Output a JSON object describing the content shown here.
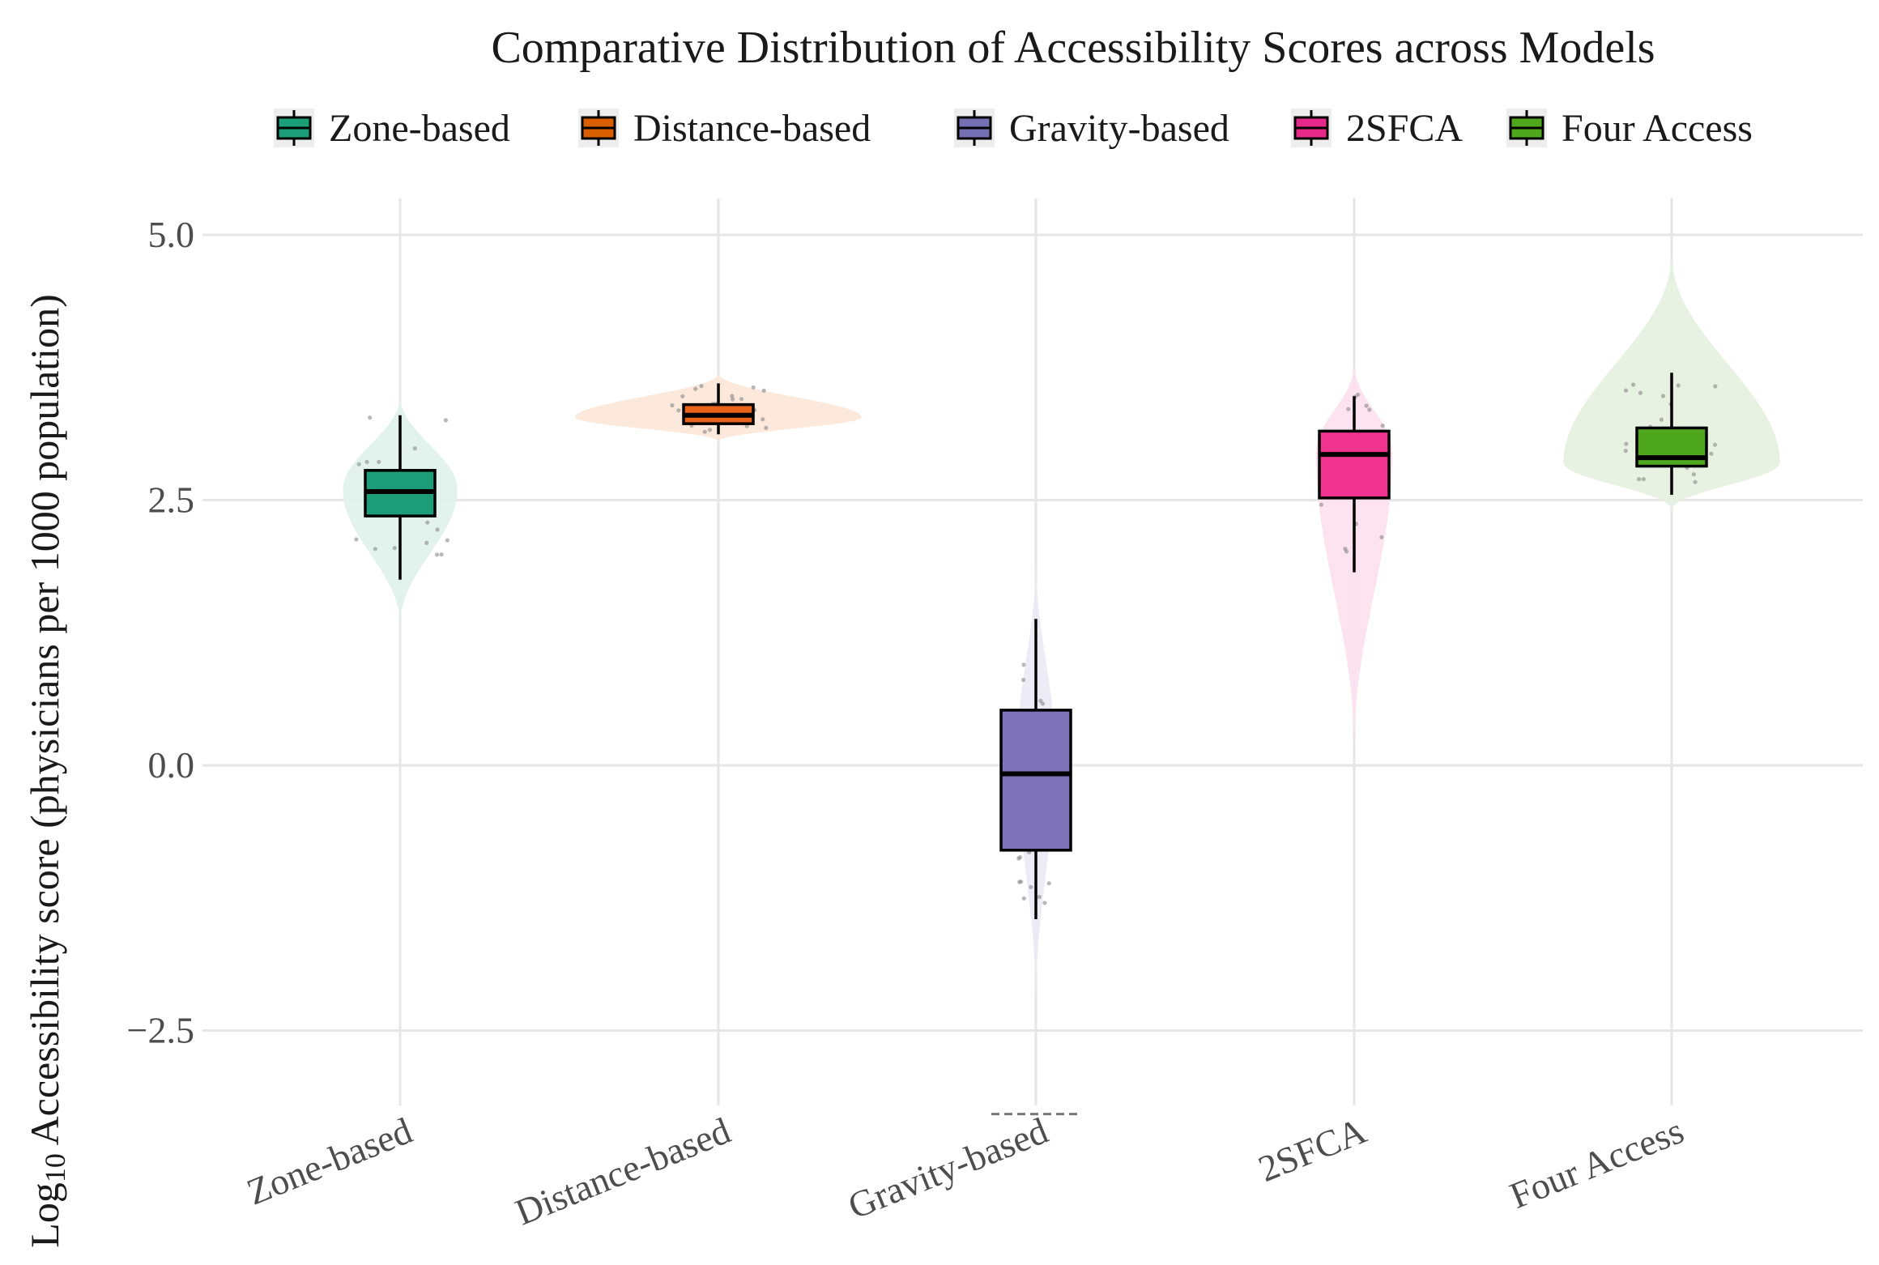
{
  "chart_data": {
    "type": "violin-box",
    "title": "Comparative Distribution of Accessibility Scores across Models",
    "ylabel_prefix": "Log",
    "ylabel_subscript": "10",
    "ylabel_rest": " Accessibility score (physicians per 1000 population)",
    "xlabel": "",
    "ylim": [
      -3.2,
      5.5
    ],
    "yticks": [
      5.0,
      2.5,
      0.0,
      -2.5
    ],
    "ytick_labels": [
      "5.0",
      "2.5",
      "0.0",
      "−2.5"
    ],
    "categories": [
      "Zone-based",
      "Distance-based",
      "Gravity-based",
      "2SFCA",
      "Four Access"
    ],
    "legend": [
      {
        "label": "Zone-based",
        "color": "#1b9e77"
      },
      {
        "label": "Distance-based",
        "color": "#d95f02"
      },
      {
        "label": "Gravity-based",
        "color": "#7570b3"
      },
      {
        "label": "2SFCA",
        "color": "#e7298a"
      },
      {
        "label": "Four Access",
        "color": "#4ea71d"
      }
    ],
    "series": [
      {
        "name": "Zone-based",
        "color": "#1b9e77",
        "light": "#dff2ec",
        "whisker_low": 1.75,
        "q1": 2.35,
        "median": 2.58,
        "q3": 2.78,
        "whisker_high": 3.3,
        "violin_min": 1.3,
        "violin_max": 3.5,
        "violin_mode": 2.6,
        "violin_width": 0.18
      },
      {
        "name": "Distance-based",
        "color": "#e8621a",
        "light": "#fde6d8",
        "whisker_low": 3.12,
        "q1": 3.22,
        "median": 3.3,
        "q3": 3.4,
        "whisker_high": 3.6,
        "violin_min": 3.05,
        "violin_max": 3.7,
        "violin_mode": 3.28,
        "violin_width": 0.45
      },
      {
        "name": "Gravity-based",
        "color": "#7e72b8",
        "light": "#ebe9f4",
        "whisker_low": -1.45,
        "q1": -0.8,
        "median": -0.08,
        "q3": 0.52,
        "whisker_high": 1.38,
        "violin_min": -2.3,
        "violin_max": 2.0,
        "violin_mode": 0.1,
        "violin_width": 0.06
      },
      {
        "name": "2SFCA",
        "color": "#f0338f",
        "light": "#fde0ee",
        "whisker_low": 1.82,
        "q1": 2.52,
        "median": 2.93,
        "q3": 3.15,
        "whisker_high": 3.48,
        "violin_min": 0.1,
        "violin_max": 3.8,
        "violin_mode": 2.95,
        "violin_width": 0.12
      },
      {
        "name": "Four Access",
        "color": "#4ea71d",
        "light": "#e6f1df",
        "whisker_low": 2.55,
        "q1": 2.82,
        "median": 2.9,
        "q3": 3.18,
        "whisker_high": 3.7,
        "violin_min": 2.4,
        "violin_max": 4.85,
        "violin_mode": 2.85,
        "violin_width": 0.34
      }
    ],
    "outlier_dash": {
      "category": "Gravity-based",
      "value": -3.15
    },
    "grid": true,
    "legend_position": "top"
  }
}
